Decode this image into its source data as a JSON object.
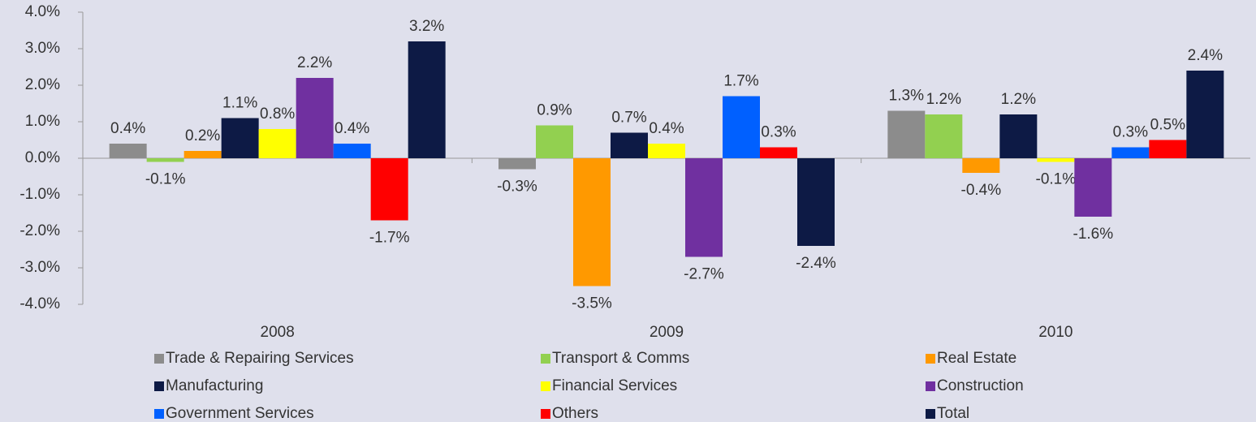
{
  "chart_data": {
    "type": "bar",
    "categories": [
      "2008",
      "2009",
      "2010"
    ],
    "ylim": [
      -4,
      4
    ],
    "yticks": [
      {
        "value": -4,
        "label": "-4.0%"
      },
      {
        "value": -3,
        "label": "-3.0%"
      },
      {
        "value": -2,
        "label": "-2.0%"
      },
      {
        "value": -1,
        "label": "-1.0%"
      },
      {
        "value": 0,
        "label": "0.0%"
      },
      {
        "value": 1,
        "label": "1.0%"
      },
      {
        "value": 2,
        "label": "2.0%"
      },
      {
        "value": 3,
        "label": "3.0%"
      },
      {
        "value": 4,
        "label": "4.0%"
      }
    ],
    "legend": "bottom",
    "series": [
      {
        "name": "Trade & Repairing Services",
        "color": "#8c8c8c",
        "values": [
          0.4,
          -0.3,
          1.3
        ],
        "value_labels": [
          "0.4%",
          "-0.3%",
          "1.3%"
        ]
      },
      {
        "name": "Transport & Comms",
        "color": "#92d050",
        "values": [
          -0.1,
          0.9,
          1.2
        ],
        "value_labels": [
          "-0.1%",
          "0.9%",
          "1.2%"
        ]
      },
      {
        "name": "Real Estate",
        "color": "#ff9900",
        "values": [
          0.2,
          -3.5,
          -0.4
        ],
        "value_labels": [
          "0.2%",
          "-3.5%",
          "-0.4%"
        ]
      },
      {
        "name": "Manufacturing",
        "color": "#0d1a45",
        "values": [
          1.1,
          0.7,
          1.2
        ],
        "value_labels": [
          "1.1%",
          "0.7%",
          "1.2%"
        ]
      },
      {
        "name": "Financial Services",
        "color": "#ffff00",
        "values": [
          0.8,
          0.4,
          -0.1
        ],
        "value_labels": [
          "0.8%",
          "0.4%",
          "-0.1%"
        ]
      },
      {
        "name": "Construction",
        "color": "#7030a0",
        "values": [
          2.2,
          -2.7,
          -1.6
        ],
        "value_labels": [
          "2.2%",
          "-2.7%",
          "-1.6%"
        ]
      },
      {
        "name": "Government Services",
        "color": "#0060ff",
        "values": [
          0.4,
          1.7,
          0.3
        ],
        "value_labels": [
          "0.4%",
          "1.7%",
          "0.3%"
        ]
      },
      {
        "name": "Others",
        "color": "#ff0000",
        "values": [
          -1.7,
          0.3,
          0.5
        ],
        "value_labels": [
          "-1.7%",
          "0.3%",
          "0.5%"
        ]
      },
      {
        "name": "Total",
        "color": "#0d1a45",
        "values": [
          3.2,
          -2.4,
          2.4
        ],
        "value_labels": [
          "3.2%",
          "-2.4%",
          "2.4%"
        ]
      }
    ]
  }
}
